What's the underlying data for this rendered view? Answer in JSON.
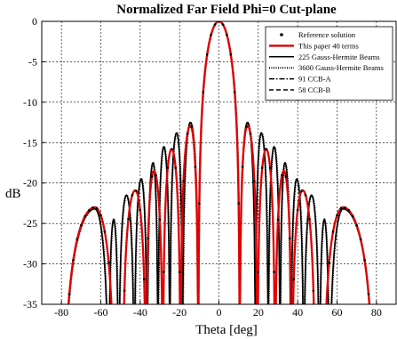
{
  "chart_data": {
    "type": "line",
    "title": "Normalized Far Field Phi=0 Cut-plane",
    "xlabel": "Theta [deg]",
    "ylabel": "dB",
    "xlim": [
      -90,
      90
    ],
    "ylim": [
      -35,
      0
    ],
    "xticks": [
      -80,
      -60,
      -40,
      -20,
      0,
      20,
      40,
      60,
      80
    ],
    "yticks": [
      0,
      -5,
      -10,
      -15,
      -20,
      -25,
      -30,
      -35
    ],
    "grid": true,
    "legend_position": "top-right",
    "legend": [
      {
        "label": "Reference solution",
        "style": "dot"
      },
      {
        "label": "This paper 40 terms",
        "style": "solid-thick",
        "color": "#e00000"
      },
      {
        "label": "225 Gauss-Hermite Beams",
        "style": "solid"
      },
      {
        "label": "3600 Gauss-Hermite Beams",
        "style": "dotted"
      },
      {
        "label": "91 CCB-A",
        "style": "dashdot"
      },
      {
        "label": "58 CCB-B",
        "style": "dashed"
      }
    ],
    "series": [
      {
        "name": "This paper 40 terms",
        "color": "#e00000",
        "lobes": [
          {
            "center": 0,
            "peak": 0,
            "left_null": -10.5,
            "right_null": 10.5
          },
          {
            "center": 14.5,
            "peak": -12.9,
            "left_null": 10.5,
            "right_null": 19.5
          },
          {
            "center": 24,
            "peak": -15.8,
            "left_null": 19.5,
            "right_null": 28.5
          },
          {
            "center": 33,
            "peak": -18.5,
            "left_null": 28.5,
            "right_null": 37
          },
          {
            "center": 42.5,
            "peak": -20.9,
            "left_null": 37,
            "right_null": 49
          },
          {
            "center": 63,
            "peak": -23.0,
            "left_null": 53,
            "right_null": 79
          }
        ]
      },
      {
        "name": "225 Gauss-Hermite Beams",
        "color": "#000000",
        "lobes": [
          {
            "center": 0,
            "peak": 0,
            "left_null": -10.5,
            "right_null": 10.5
          },
          {
            "center": 14.5,
            "peak": -12.5,
            "left_null": 10.5,
            "right_null": 18.5
          },
          {
            "center": 21.5,
            "peak": -13.8,
            "left_null": 18.5,
            "right_null": 25
          },
          {
            "center": 28,
            "peak": -15.5,
            "left_null": 25,
            "right_null": 31
          },
          {
            "center": 33.5,
            "peak": -17.5,
            "left_null": 31,
            "right_null": 36.5
          },
          {
            "center": 39.5,
            "peak": -19.5,
            "left_null": 36.5,
            "right_null": 43
          },
          {
            "center": 47,
            "peak": -21.5,
            "left_null": 43,
            "right_null": 51
          },
          {
            "center": 53.5,
            "peak": -24.5,
            "left_null": 51,
            "right_null": 56
          },
          {
            "center": 63,
            "peak": -23.2,
            "left_null": 56,
            "right_null": 79
          }
        ]
      }
    ]
  }
}
